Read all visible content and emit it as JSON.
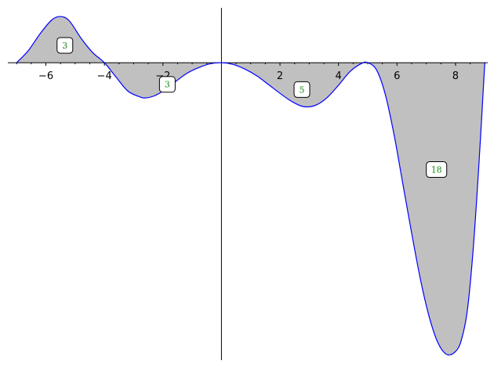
{
  "chart_data": {
    "type": "area",
    "title": "",
    "xlabel": "",
    "ylabel": "",
    "xlim": [
      -7.3,
      9.1
    ],
    "ylim": [
      -10.3,
      1.9
    ],
    "x_ticks": [
      -6,
      -4,
      -2,
      2,
      4,
      6,
      8
    ],
    "x_tick_labels": [
      "−6",
      "−4",
      "−2",
      "2",
      "4",
      "6",
      "8"
    ],
    "grid": false,
    "curve_color": "#0000ff",
    "fill_color": "#c0c0c0",
    "label_text_color": "#1a8a1a",
    "series": [
      {
        "x": [
          -7.0,
          -6.6,
          -6.2,
          -5.8,
          -5.5,
          -5.2,
          -4.8,
          -4.4,
          -4.0,
          -3.6,
          -3.2,
          -2.8,
          -2.6,
          -2.3,
          -2.0,
          -1.6,
          -1.2,
          -0.8,
          -0.4,
          0.0,
          0.4,
          0.8,
          1.2,
          1.6,
          2.0,
          2.4,
          2.8,
          3.2,
          3.6,
          4.0,
          4.4,
          4.8,
          5.0,
          5.3,
          5.6,
          5.9,
          6.2,
          6.5,
          6.8,
          7.1,
          7.4,
          7.7,
          8.0,
          8.2,
          8.4,
          8.6,
          8.8,
          9.0
        ],
        "y": [
          0.0,
          0.42,
          1.0,
          1.48,
          1.6,
          1.45,
          0.85,
          0.35,
          0.0,
          -0.5,
          -0.98,
          -1.18,
          -1.22,
          -1.15,
          -0.98,
          -0.68,
          -0.38,
          -0.18,
          -0.04,
          0.0,
          -0.06,
          -0.22,
          -0.45,
          -0.75,
          -1.06,
          -1.34,
          -1.52,
          -1.48,
          -1.22,
          -0.78,
          -0.3,
          -0.02,
          0.0,
          -0.25,
          -1.1,
          -2.5,
          -4.2,
          -5.9,
          -7.5,
          -8.8,
          -9.7,
          -10.1,
          -10.0,
          -9.6,
          -8.6,
          -6.5,
          -3.5,
          0.0
        ]
      }
    ],
    "region_labels": [
      {
        "x": -5.35,
        "y": 0.6,
        "text": "3"
      },
      {
        "x": -1.85,
        "y": -0.75,
        "text": "3"
      },
      {
        "x": 2.75,
        "y": -0.93,
        "text": "5"
      },
      {
        "x": 7.35,
        "y": -3.7,
        "text": "18"
      }
    ]
  }
}
